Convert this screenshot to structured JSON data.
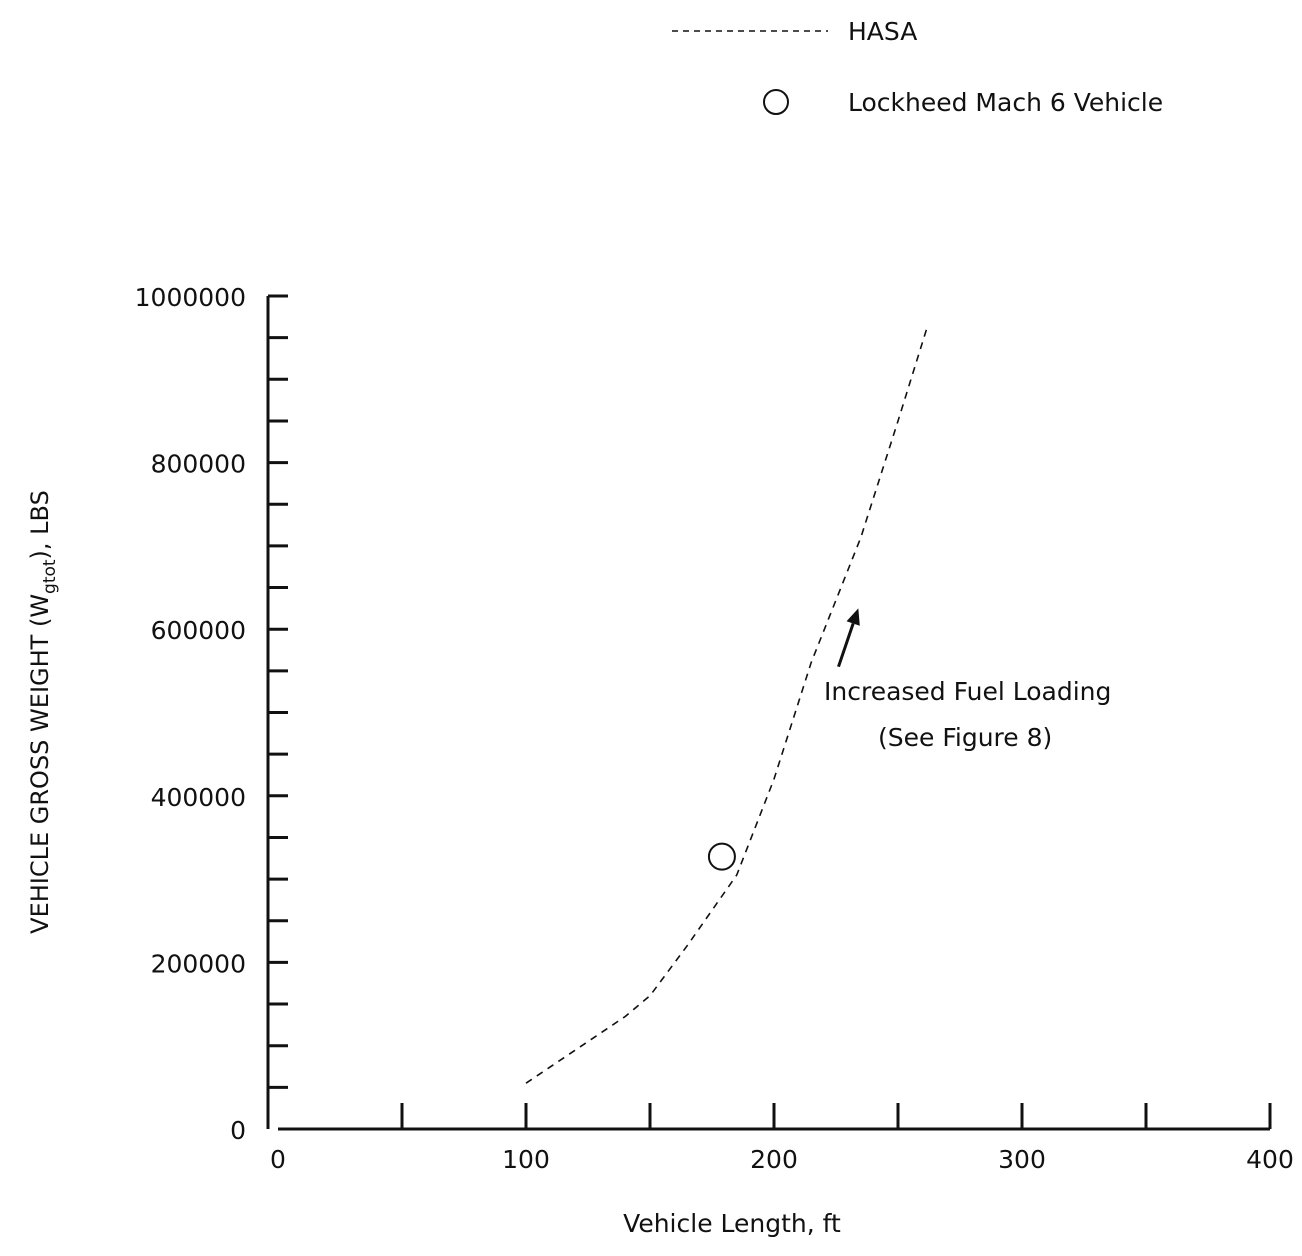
{
  "chart_data": {
    "type": "line",
    "xlabel": "Vehicle Length, ft",
    "ylabel": {
      "prefix": "VEHICLE GROSS WEIGHT (W",
      "subscript": "gtot",
      "suffix": "),  LBS"
    },
    "xlim": [
      0,
      400
    ],
    "ylim": [
      0,
      1000000
    ],
    "x_ticks": [
      0,
      100,
      200,
      300,
      400
    ],
    "x_tick_labels": [
      "0",
      "100",
      "200",
      "300",
      "400"
    ],
    "x_minor_ticks": [
      50,
      150,
      250,
      350
    ],
    "y_ticks": [
      0,
      200000,
      400000,
      600000,
      800000,
      1000000
    ],
    "y_tick_labels": [
      "0",
      "200000",
      "400000",
      "600000",
      "800000",
      "1000000"
    ],
    "y_minor_ticks": [
      50000,
      100000,
      150000,
      250000,
      300000,
      350000,
      450000,
      500000,
      550000,
      650000,
      700000,
      750000,
      850000,
      900000,
      950000
    ],
    "grid": false,
    "legend_position": "top",
    "series": [
      {
        "name": "HASA",
        "style": "dashed",
        "x": [
          100,
          120,
          140,
          150,
          165,
          185,
          200,
          215,
          235,
          250,
          262
        ],
        "y": [
          55000,
          95000,
          135000,
          160000,
          220000,
          305000,
          420000,
          560000,
          710000,
          850000,
          965000
        ]
      },
      {
        "name": "Lockheed Mach 6 Vehicle",
        "style": "open-circle",
        "x": [
          179
        ],
        "y": [
          327000
        ]
      }
    ],
    "annotations": [
      {
        "lines": [
          "Increased Fuel Loading",
          "(See Figure 8)"
        ],
        "arrow_from": [
          226,
          555000
        ],
        "arrow_to": [
          234,
          625000
        ]
      }
    ],
    "colors": {
      "ink": "#111111",
      "background": "#ffffff"
    }
  }
}
